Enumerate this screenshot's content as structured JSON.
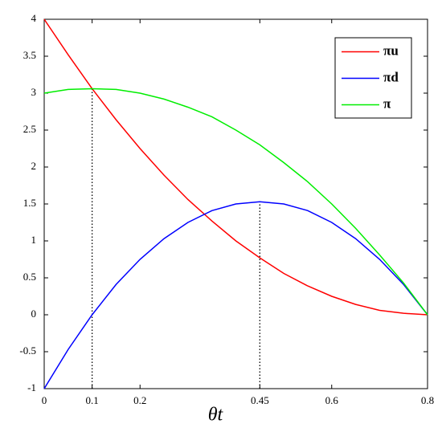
{
  "chart_data": {
    "type": "line",
    "x_label": "θt",
    "x": [
      0,
      0.05,
      0.1,
      0.15,
      0.2,
      0.25,
      0.3,
      0.35,
      0.4,
      0.45,
      0.5,
      0.55,
      0.6,
      0.65,
      0.7,
      0.75,
      0.8
    ],
    "series": [
      {
        "name": "πu",
        "color": "#ff0000",
        "values": [
          4,
          3.52,
          3.06,
          2.64,
          2.25,
          1.89,
          1.56,
          1.27,
          1.0,
          0.77,
          0.56,
          0.39,
          0.25,
          0.14,
          0.06,
          0.02,
          0
        ]
      },
      {
        "name": "πd",
        "color": "#0000ff",
        "values": [
          -1.0,
          -0.47,
          0,
          0.41,
          0.75,
          1.03,
          1.25,
          1.41,
          1.5,
          1.53,
          1.5,
          1.41,
          1.25,
          1.03,
          0.75,
          0.41,
          0
        ]
      },
      {
        "name": "π",
        "color": "#00ee00",
        "values": [
          3.0,
          3.05,
          3.06,
          3.05,
          3.0,
          2.92,
          2.81,
          2.68,
          2.5,
          2.3,
          2.06,
          1.8,
          1.5,
          1.17,
          0.81,
          0.43,
          0
        ]
      }
    ],
    "reference_lines": [
      {
        "x": 0.1,
        "y": 3.06
      },
      {
        "x": 0.45,
        "y": 1.53
      }
    ],
    "xlim": [
      0,
      0.8
    ],
    "xticks": [
      0,
      0.1,
      0.2,
      0.45,
      0.6,
      0.8
    ],
    "ylim": [
      -1,
      4
    ],
    "yticks": [
      -1,
      -0.5,
      0,
      0.5,
      1,
      1.5,
      2,
      2.5,
      3,
      3.5,
      4
    ],
    "grid": false,
    "legend": "upper right"
  }
}
